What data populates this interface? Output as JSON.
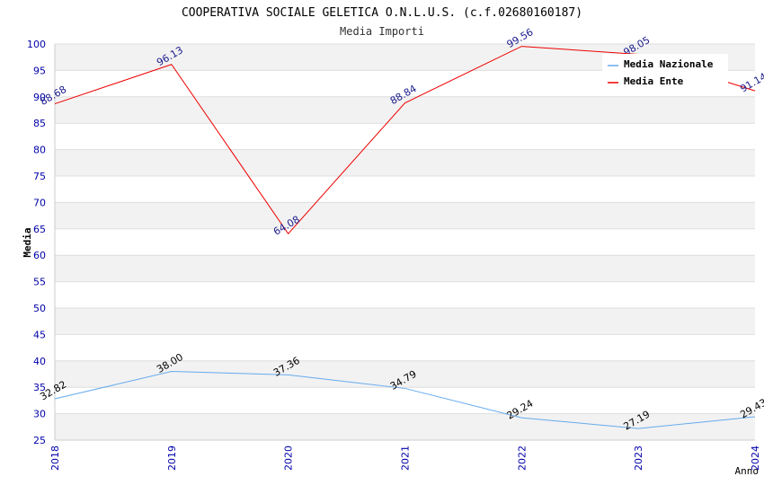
{
  "chart_data": {
    "type": "line",
    "title": "COOPERATIVA SOCIALE GELETICA O.N.L.U.S. (c.f.02680160187)",
    "subtitle": "Media Importi",
    "xlabel": "Anno",
    "ylabel": "Media",
    "categories": [
      "2018",
      "2019",
      "2020",
      "2021",
      "2022",
      "2023",
      "2024"
    ],
    "ylim": [
      25,
      100
    ],
    "yticks": [
      "25",
      "30",
      "35",
      "40",
      "45",
      "50",
      "55",
      "60",
      "65",
      "70",
      "75",
      "80",
      "85",
      "90",
      "95",
      "100"
    ],
    "grid": "horizontal alternating bands",
    "legend_position": "top-right",
    "series": [
      {
        "name": "Media Nazionale",
        "color": "#66aaee",
        "label_color": "#000000",
        "values": [
          32.82,
          38.0,
          37.36,
          34.79,
          29.24,
          27.19,
          29.43
        ],
        "labels": [
          "32.82",
          "38.00",
          "37.36",
          "34.79",
          "29.24",
          "27.19",
          "29.43"
        ]
      },
      {
        "name": "Media Ente",
        "color": "#ee0000",
        "label_color": "#1a1a8c",
        "values": [
          88.68,
          96.13,
          64.08,
          88.84,
          99.56,
          98.05,
          91.14
        ],
        "labels": [
          "88.68",
          "96.13",
          "64.08",
          "88.84",
          "99.56",
          "98.05",
          "91.14"
        ]
      }
    ]
  },
  "colors": {
    "axis_text": "#0000aa",
    "band": "#f2f2f2",
    "gridline": "#dddddd",
    "title": "#000000",
    "subtitle": "#333333"
  }
}
